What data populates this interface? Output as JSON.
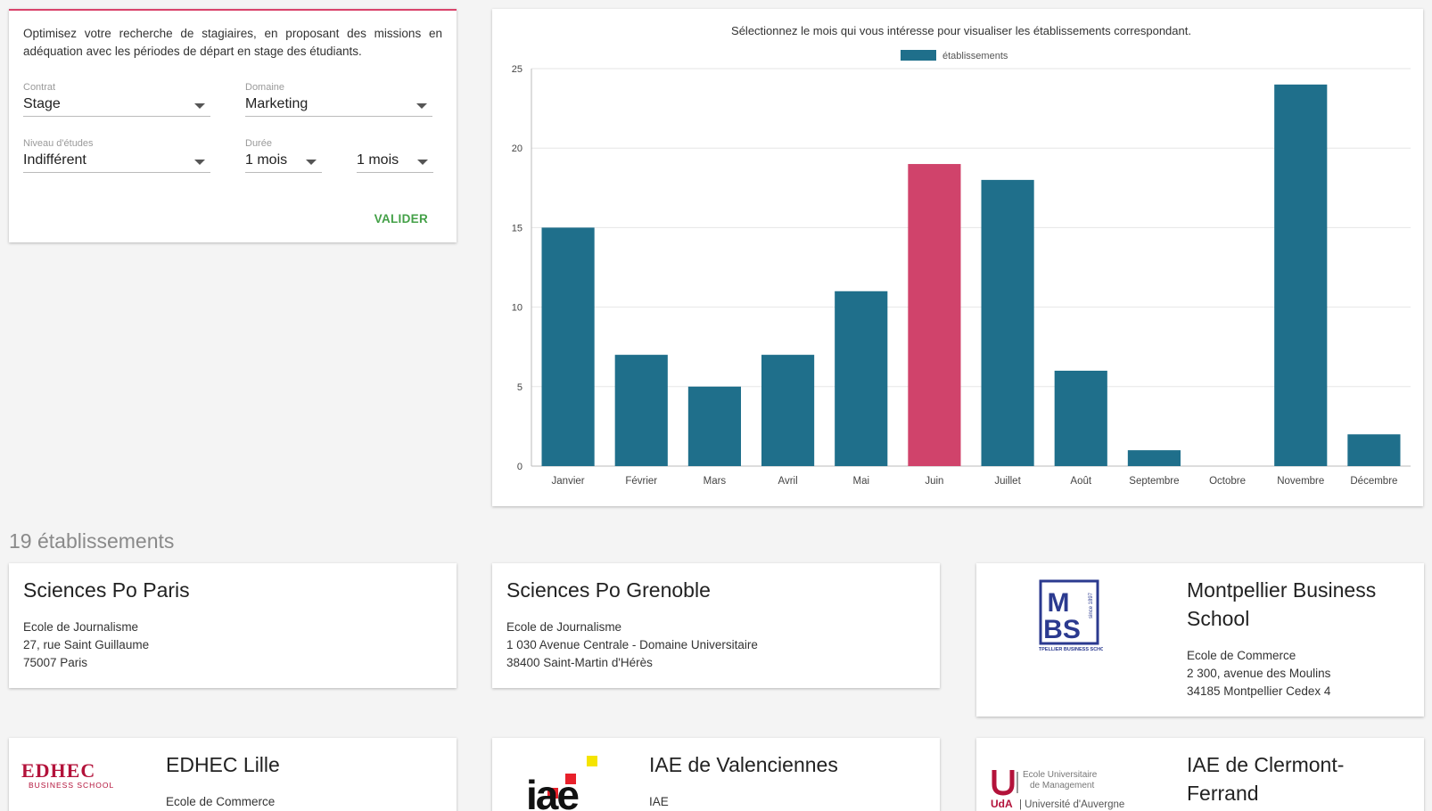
{
  "filters": {
    "intro": "Optimisez votre recherche de stagiaires, en proposant des missions en adéquation avec les périodes de départ en stage des étudiants.",
    "contrat": {
      "label": "Contrat",
      "value": "Stage"
    },
    "domaine": {
      "label": "Domaine",
      "value": "Marketing"
    },
    "niveau": {
      "label": "Niveau d'études",
      "value": "Indifférent"
    },
    "duree": {
      "label": "Durée",
      "min": "1 mois",
      "max": "1 mois"
    },
    "submit_label": "VALIDER"
  },
  "chart_data": {
    "type": "bar",
    "title": "Sélectionnez le mois qui vous intéresse pour visualiser les établissements correspondant.",
    "categories": [
      "Janvier",
      "Février",
      "Mars",
      "Avril",
      "Mai",
      "Juin",
      "Juillet",
      "Août",
      "Septembre",
      "Octobre",
      "Novembre",
      "Décembre"
    ],
    "series": [
      {
        "name": "établissements",
        "values": [
          15,
          7,
          5,
          7,
          11,
          19,
          18,
          6,
          1,
          0,
          24,
          2
        ]
      }
    ],
    "selected_category": "Juin",
    "ylim": [
      0,
      25
    ],
    "yticks": [
      0,
      5,
      10,
      15,
      20,
      25
    ],
    "grid": true,
    "legend": "top-center",
    "colors": {
      "bar": "#1f6f8b",
      "selected": "#d0436b"
    }
  },
  "results": {
    "count_label": "19 établissements",
    "items": [
      {
        "name": "Sciences Po Paris",
        "type": "Ecole de Journalisme",
        "address": "27, rue Saint Guillaume",
        "city": "75007 Paris"
      },
      {
        "name": "Sciences Po Grenoble",
        "type": "Ecole de Journalisme",
        "address": "1 030 Avenue Centrale - Domaine Universitaire",
        "city": "38400 Saint-Martin d'Hérès"
      },
      {
        "name": "Montpellier Business School",
        "type": "Ecole de Commerce",
        "address": "2 300, avenue des Moulins",
        "city": "34185 Montpellier Cedex 4"
      },
      {
        "name": "EDHEC Lille",
        "type": "Ecole de Commerce"
      },
      {
        "name": "IAE de Valenciennes",
        "type": "IAE"
      },
      {
        "name": "IAE de Clermont-Ferrand"
      }
    ]
  },
  "logos": {
    "mbs": {
      "letters": "MBS",
      "since": "since 1897",
      "subtitle": "MONTPELLIER BUSINESS SCHOOL",
      "color": "#2b3a8f"
    },
    "edhec": {
      "name": "EDHEC",
      "subtitle": "BUSINESS SCHOOL",
      "color": "#b3123a"
    },
    "iae": {
      "text": "iae",
      "accent": "#e8202a",
      "accent2": "#f5e400"
    },
    "uda": {
      "line1": "Ecole Universitaire",
      "line2": "de Management",
      "abbr": "UdA",
      "univ": "Université d'Auvergne",
      "color": "#b3123a"
    }
  }
}
